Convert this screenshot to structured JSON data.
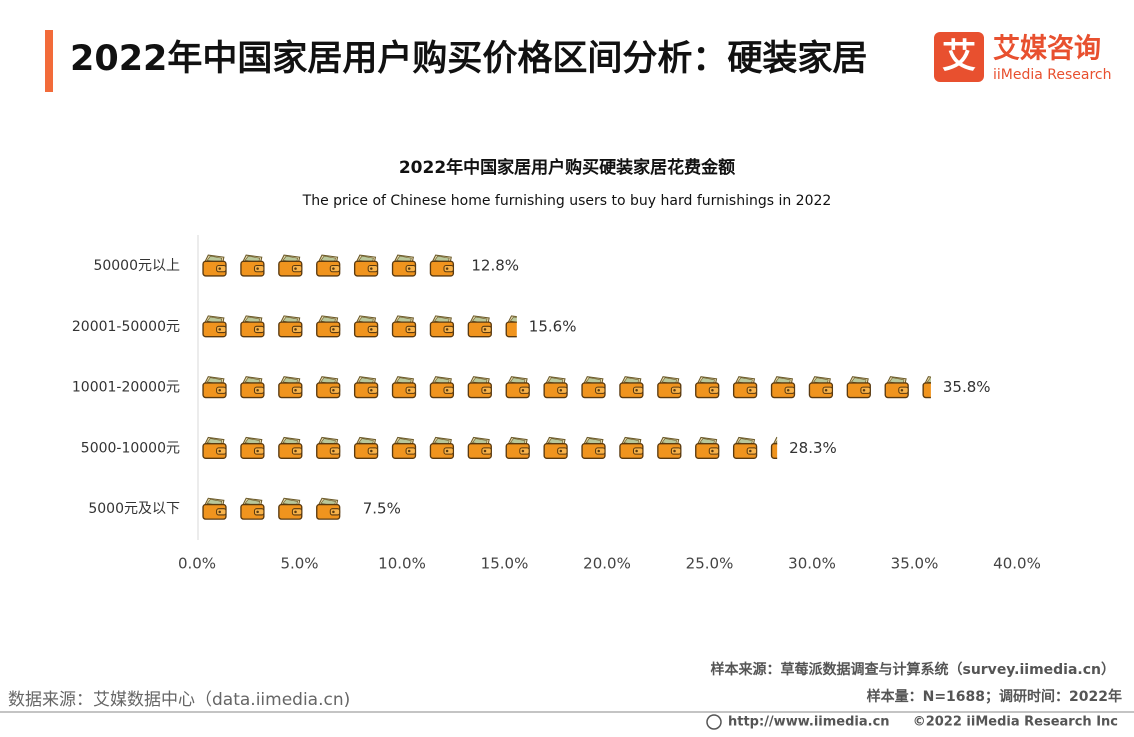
{
  "header": {
    "title": "2022年中国家居用户购买价格区间分析：硬装家居",
    "logo_mark": "艾",
    "logo_cn": "艾媒咨询",
    "logo_en": "iiMedia Research"
  },
  "chart_data": {
    "type": "pictograph-bar",
    "title": "2022年中国家居用户购买硬装家居花费金额",
    "subtitle": "The price of Chinese home furnishing users to buy hard furnishings in 2022",
    "categories": [
      "50000元以上",
      "20001-50000元",
      "10001-20000元",
      "5000-10000元",
      "5000元及以下"
    ],
    "values": [
      12.8,
      15.6,
      35.8,
      28.3,
      7.5
    ],
    "value_labels": [
      "12.8%",
      "15.6%",
      "35.8%",
      "28.3%",
      "7.5%"
    ],
    "color": "#f0941e",
    "xlim": [
      0,
      40
    ],
    "xticks": [
      {
        "value": 0,
        "label": "0.0%"
      },
      {
        "value": 5,
        "label": "5.0%"
      },
      {
        "value": 10,
        "label": "10.0%"
      },
      {
        "value": 15,
        "label": "15.0%"
      },
      {
        "value": 20,
        "label": "20.0%"
      },
      {
        "value": 25,
        "label": "25.0%"
      },
      {
        "value": 30,
        "label": "30.0%"
      },
      {
        "value": 35,
        "label": "35.0%"
      },
      {
        "value": 40,
        "label": "40.0%"
      }
    ]
  },
  "footer": {
    "sample_source": "样本来源：草莓派数据调查与计算系统（survey.iimedia.cn）",
    "sample_size": "样本量：N=1688；调研时间：2022年",
    "data_source": "数据来源：艾媒数据中心（data.iimedia.cn)",
    "url": "http://www.iimedia.cn",
    "copyright": "©2022  iiMedia Research  Inc"
  }
}
